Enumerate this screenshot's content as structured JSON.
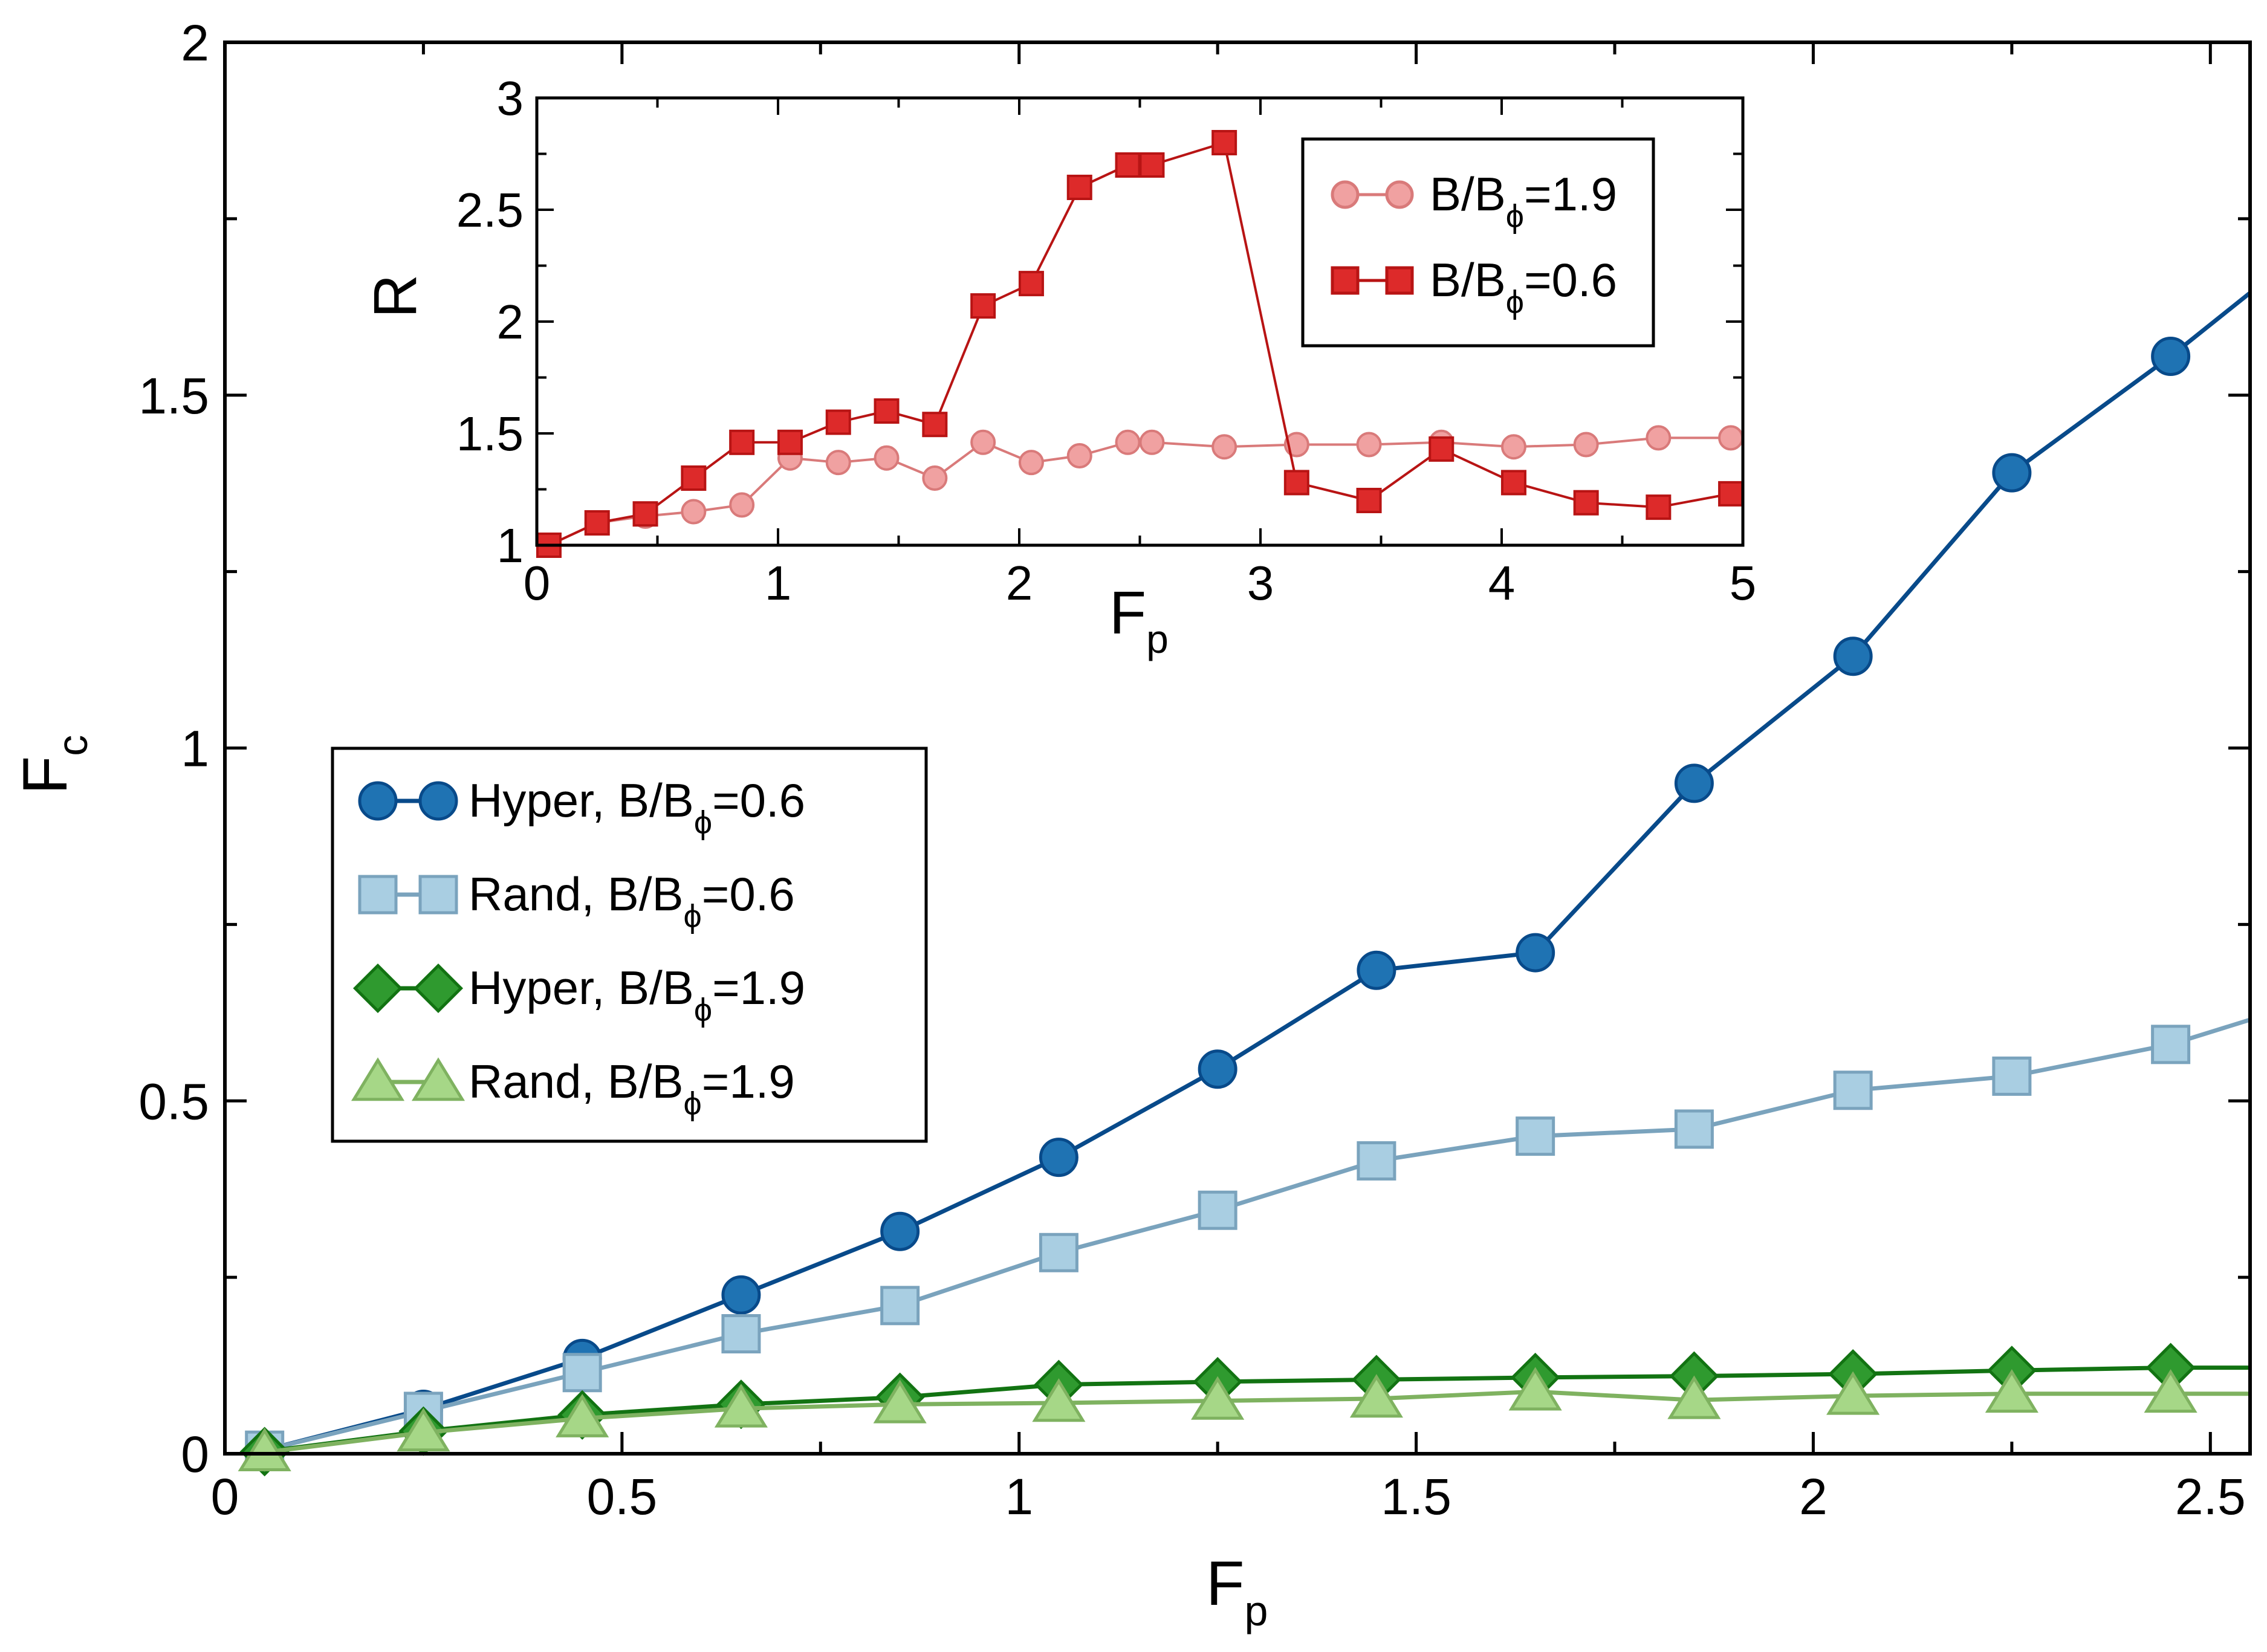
{
  "chart_data": [
    {
      "type": "line",
      "title": "",
      "xlabel": "F",
      "xlabel_sub": "p",
      "ylabel": "F",
      "ylabel_sub": "c",
      "xlim": [
        0,
        2.55
      ],
      "ylim": [
        0,
        2
      ],
      "x_tick_labels": [
        "0",
        "0.5",
        "1",
        "1.5",
        "2",
        "2.5"
      ],
      "y_tick_labels": [
        "0",
        "0.5",
        "1",
        "1.5",
        "2"
      ],
      "legend_position": "middle-left",
      "series": [
        {
          "name": "Hyper, B/Bϕ=0.6",
          "label_main": "Hyper, B/B",
          "label_sub": "ϕ",
          "label_tail": "=0.6",
          "marker": "circle",
          "color": "#084a8a",
          "fill": "#1f73b3",
          "x": [
            0.05,
            0.25,
            0.45,
            0.65,
            0.85,
            1.05,
            1.25,
            1.45,
            1.65,
            1.85,
            2.05,
            2.25,
            2.45,
            2.55
          ],
          "y": [
            0.005,
            0.063,
            0.135,
            0.225,
            0.315,
            0.42,
            0.545,
            0.685,
            0.71,
            0.95,
            1.13,
            1.39,
            1.555,
            1.645
          ]
        },
        {
          "name": "Rand, B/Bϕ=0.6",
          "label_main": "Rand, B/B",
          "label_sub": "ϕ",
          "label_tail": "=0.6",
          "marker": "square",
          "color": "#7aa3bd",
          "fill": "#a9cee2",
          "x": [
            0.05,
            0.25,
            0.45,
            0.65,
            0.85,
            1.05,
            1.25,
            1.45,
            1.65,
            1.85,
            2.05,
            2.25,
            2.45,
            2.55
          ],
          "y": [
            0.005,
            0.06,
            0.115,
            0.17,
            0.21,
            0.285,
            0.345,
            0.415,
            0.45,
            0.46,
            0.515,
            0.535,
            0.58,
            0.615
          ]
        },
        {
          "name": "Hyper, B/Bϕ=1.9",
          "label_main": "Hyper, B/B",
          "label_sub": "ϕ",
          "label_tail": "=1.9",
          "marker": "diamond",
          "color": "#127312",
          "fill": "#2f9a2f",
          "x": [
            0.05,
            0.25,
            0.45,
            0.65,
            0.85,
            1.05,
            1.25,
            1.45,
            1.65,
            1.85,
            2.05,
            2.25,
            2.45,
            2.55
          ],
          "y": [
            0.003,
            0.032,
            0.055,
            0.07,
            0.08,
            0.098,
            0.102,
            0.105,
            0.108,
            0.11,
            0.113,
            0.118,
            0.122,
            0.122
          ]
        },
        {
          "name": "Rand, B/Bϕ=1.9",
          "label_main": "Rand, B/B",
          "label_sub": "ϕ",
          "label_tail": "=1.9",
          "marker": "triangle",
          "color": "#7fb260",
          "fill": "#a6d787",
          "x": [
            0.05,
            0.25,
            0.45,
            0.65,
            0.85,
            1.05,
            1.25,
            1.45,
            1.65,
            1.85,
            2.05,
            2.25,
            2.45,
            2.55
          ],
          "y": [
            0.002,
            0.03,
            0.05,
            0.064,
            0.07,
            0.072,
            0.075,
            0.078,
            0.088,
            0.076,
            0.082,
            0.085,
            0.085,
            0.085
          ]
        }
      ]
    },
    {
      "type": "line",
      "title": "",
      "xlabel": "F",
      "xlabel_sub": "p",
      "ylabel": "R",
      "xlim": [
        0,
        5
      ],
      "ylim": [
        1,
        3
      ],
      "x_tick_labels": [
        "0",
        "1",
        "2",
        "3",
        "4",
        "5"
      ],
      "y_tick_labels": [
        "1",
        "1.5",
        "2",
        "2.5",
        "3"
      ],
      "legend_position": "top-right",
      "series": [
        {
          "name": "B/Bϕ=1.9",
          "label_main": "B/B",
          "label_sub": "ϕ",
          "label_tail": "=1.9",
          "marker": "circle",
          "color": "#d97a7a",
          "fill": "#f0a1a1",
          "x": [
            0.05,
            0.25,
            0.45,
            0.65,
            0.85,
            1.05,
            1.25,
            1.45,
            1.65,
            1.85,
            2.05,
            2.25,
            2.45,
            2.55,
            2.85,
            3.15,
            3.45,
            3.75,
            4.05,
            4.35,
            4.65,
            4.95
          ],
          "y": [
            1.0,
            1.1,
            1.13,
            1.15,
            1.18,
            1.39,
            1.37,
            1.39,
            1.3,
            1.46,
            1.37,
            1.4,
            1.46,
            1.46,
            1.44,
            1.45,
            1.45,
            1.46,
            1.44,
            1.45,
            1.48,
            1.48
          ]
        },
        {
          "name": "B/Bϕ=0.6",
          "label_main": "B/B",
          "label_sub": "ϕ",
          "label_tail": "=0.6",
          "marker": "square",
          "color": "#b81414",
          "fill": "#dd2a2a",
          "x": [
            0.05,
            0.25,
            0.45,
            0.65,
            0.85,
            1.05,
            1.25,
            1.45,
            1.65,
            1.85,
            2.05,
            2.25,
            2.45,
            2.55,
            2.85,
            3.15,
            3.45,
            3.75,
            4.05,
            4.35,
            4.65,
            4.95
          ],
          "y": [
            1.0,
            1.1,
            1.14,
            1.3,
            1.46,
            1.46,
            1.55,
            1.6,
            1.54,
            2.07,
            2.17,
            2.6,
            2.7,
            2.7,
            2.8,
            1.28,
            1.2,
            1.43,
            1.28,
            1.19,
            1.17,
            1.23
          ]
        }
      ]
    }
  ]
}
